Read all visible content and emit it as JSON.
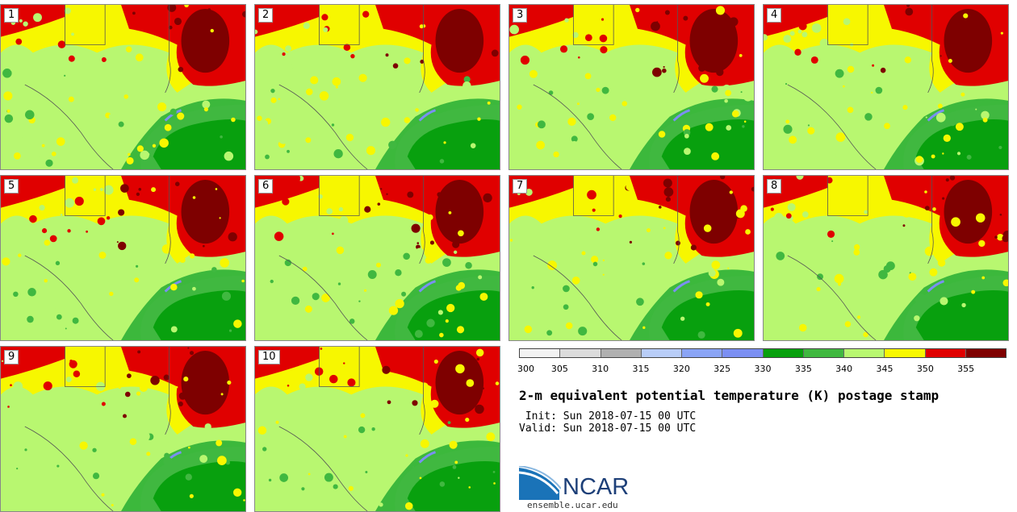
{
  "panels": [
    {
      "label": "1"
    },
    {
      "label": "2"
    },
    {
      "label": "3"
    },
    {
      "label": "4"
    },
    {
      "label": "5"
    },
    {
      "label": "6"
    },
    {
      "label": "7"
    },
    {
      "label": "8"
    },
    {
      "label": "9"
    },
    {
      "label": "10"
    }
  ],
  "colorbar": {
    "colors": [
      "#f2f2f2",
      "#dcdcdc",
      "#b0b0b0",
      "#b8cdf7",
      "#8aa4f5",
      "#7b8ff2",
      "#08a00e",
      "#40b840",
      "#b8f770",
      "#f7f700",
      "#e00000",
      "#7e0000"
    ],
    "ticks": [
      "300",
      "305",
      "310",
      "315",
      "320",
      "325",
      "330",
      "335",
      "340",
      "345",
      "350",
      "355"
    ]
  },
  "title": "2-m equivalent potential temperature (K) postage stamp",
  "init": " Init: Sun 2018-07-15 00 UTC",
  "valid": "Valid: Sun 2018-07-15 00 UTC",
  "logo": {
    "name": "NCAR",
    "url": "ensemble.ucar.edu"
  }
}
